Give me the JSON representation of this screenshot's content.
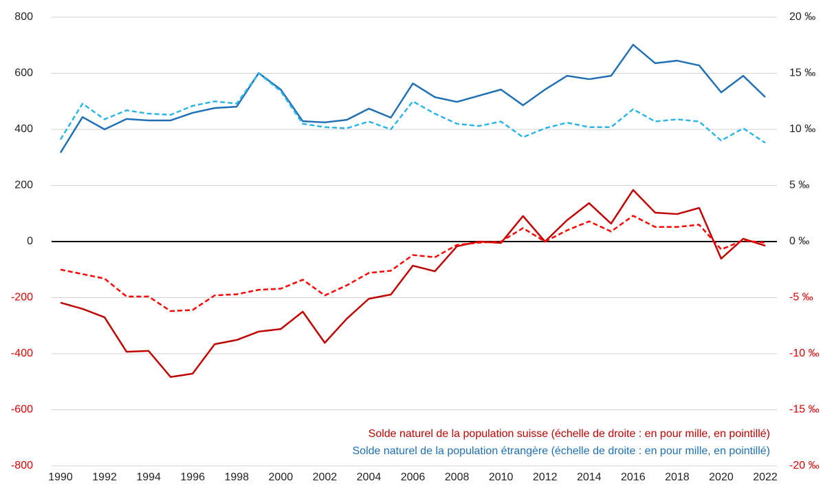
{
  "chart_data": {
    "type": "line",
    "x": [
      1990,
      1991,
      1992,
      1993,
      1994,
      1995,
      1996,
      1997,
      1998,
      1999,
      2000,
      2001,
      2002,
      2003,
      2004,
      2005,
      2006,
      2007,
      2008,
      2009,
      2010,
      2011,
      2012,
      2013,
      2014,
      2015,
      2016,
      2017,
      2018,
      2019,
      2020,
      2021,
      2022
    ],
    "xlim": [
      1990,
      2022
    ],
    "xticks": [
      1990,
      1992,
      1994,
      1996,
      1998,
      2000,
      2002,
      2004,
      2006,
      2008,
      2010,
      2012,
      2014,
      2016,
      2018,
      2020,
      2022
    ],
    "ylim": [
      -800,
      800
    ],
    "yticks": [
      -800,
      -600,
      -400,
      -200,
      0,
      200,
      400,
      600,
      800
    ],
    "y2lim": [
      -20,
      20
    ],
    "y2ticks": [
      {
        "value": -20,
        "label": "-20 ‰"
      },
      {
        "value": -15,
        "label": "-15 ‰"
      },
      {
        "value": -10,
        "label": "-10 ‰"
      },
      {
        "value": -5,
        "label": "-5 ‰"
      },
      {
        "value": 0,
        "label": "0 ‰"
      },
      {
        "value": 5,
        "label": "5 ‰"
      },
      {
        "value": 10,
        "label": "10 ‰"
      },
      {
        "value": 15,
        "label": "15 ‰"
      },
      {
        "value": 20,
        "label": "20 ‰"
      }
    ],
    "grid": true,
    "series": [
      {
        "name": "Solde naturel de la population suisse (échelle de droite : en pour mille, en pointillé)",
        "color": "#c00000",
        "style": "solid",
        "values": [
          -218,
          -240,
          -270,
          -393,
          -390,
          -483,
          -471,
          -366,
          -351,
          -321,
          -312,
          -250,
          -361,
          -275,
          -204,
          -189,
          -86,
          -106,
          -17,
          0,
          -5,
          91,
          0,
          76,
          137,
          64,
          184,
          103,
          98,
          120,
          -61,
          10,
          -15
        ]
      },
      {
        "color": "#ff0000",
        "style": "dashed",
        "axis": "y2",
        "values": [
          -2.5,
          -2.9,
          -3.3,
          -4.9,
          -4.9,
          -6.2,
          -6.1,
          -4.8,
          -4.7,
          -4.3,
          -4.2,
          -3.4,
          -4.8,
          -3.9,
          -2.8,
          -2.6,
          -1.2,
          -1.4,
          -0.3,
          -0.1,
          0,
          1.2,
          0,
          1.0,
          1.8,
          0.9,
          2.3,
          1.3,
          1.3,
          1.5,
          -0.7,
          0.1,
          -0.1
        ]
      },
      {
        "name": "Solde naturel de la population étrangère (échelle de droite : en pour mille, en pointillé)",
        "color": "#1f6fb4",
        "style": "solid",
        "values": [
          317,
          444,
          400,
          437,
          432,
          432,
          459,
          476,
          481,
          601,
          542,
          429,
          425,
          434,
          474,
          442,
          564,
          515,
          498,
          520,
          542,
          486,
          542,
          591,
          579,
          591,
          702,
          636,
          645,
          628,
          532,
          591,
          515
        ]
      },
      {
        "color": "#2cb5e8",
        "style": "dashed",
        "axis": "y2",
        "values": [
          9.1,
          12.3,
          10.9,
          11.7,
          11.4,
          11.3,
          12.1,
          12.5,
          12.3,
          15.0,
          13.4,
          10.5,
          10.2,
          10.1,
          10.7,
          10.0,
          12.5,
          11.4,
          10.5,
          10.3,
          10.7,
          9.3,
          10.1,
          10.6,
          10.2,
          10.2,
          11.8,
          10.7,
          10.9,
          10.7,
          9.0,
          10.1,
          8.8
        ]
      }
    ]
  }
}
